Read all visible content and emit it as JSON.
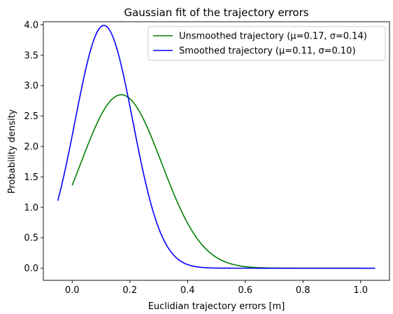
{
  "chart_data": {
    "type": "line",
    "title": "Gaussian fit of the trajectory errors",
    "xlabel": "Euclidian trajectory errors [m]",
    "ylabel": "Probability density",
    "xlim": [
      -0.1,
      1.1
    ],
    "ylim": [
      -0.2,
      4.05
    ],
    "xticks": [
      0.0,
      0.2,
      0.4,
      0.6,
      0.8,
      1.0
    ],
    "xtick_labels": [
      "0.0",
      "0.2",
      "0.4",
      "0.6",
      "0.8",
      "1.0"
    ],
    "yticks": [
      0.0,
      0.5,
      1.0,
      1.5,
      2.0,
      2.5,
      3.0,
      3.5,
      4.0
    ],
    "ytick_labels": [
      "0.0",
      "0.5",
      "1.0",
      "1.5",
      "2.0",
      "2.5",
      "3.0",
      "3.5",
      "4.0"
    ],
    "grid": false,
    "legend_position": "top-right",
    "series": [
      {
        "name": "Unsmoothed trajectory (μ=0.17, σ=0.14)",
        "color": "#008000",
        "mu": 0.17,
        "sigma": 0.14,
        "x_range": [
          0.0,
          1.0
        ],
        "x": [
          0.0,
          0.05,
          0.1,
          0.17,
          0.25,
          0.3,
          0.4,
          0.5,
          0.6,
          0.7,
          0.8,
          1.0
        ],
        "y": [
          1.38,
          1.98,
          2.5,
          2.89,
          2.46,
          1.82,
          0.75,
          0.18,
          0.03,
          0.0,
          0.0,
          0.0
        ]
      },
      {
        "name": "Smoothed trajectory (μ=0.11, σ=0.10)",
        "color": "#0000ff",
        "mu": 0.11,
        "sigma": 0.1,
        "x_range": [
          -0.05,
          1.05
        ],
        "x": [
          -0.05,
          0.0,
          0.05,
          0.11,
          0.15,
          0.2,
          0.3,
          0.4,
          0.5,
          0.6,
          0.8,
          1.05
        ],
        "y": [
          1.2,
          2.2,
          3.3,
          3.88,
          3.6,
          2.8,
          0.75,
          0.06,
          0.0,
          0.0,
          0.0,
          0.0
        ]
      }
    ]
  }
}
